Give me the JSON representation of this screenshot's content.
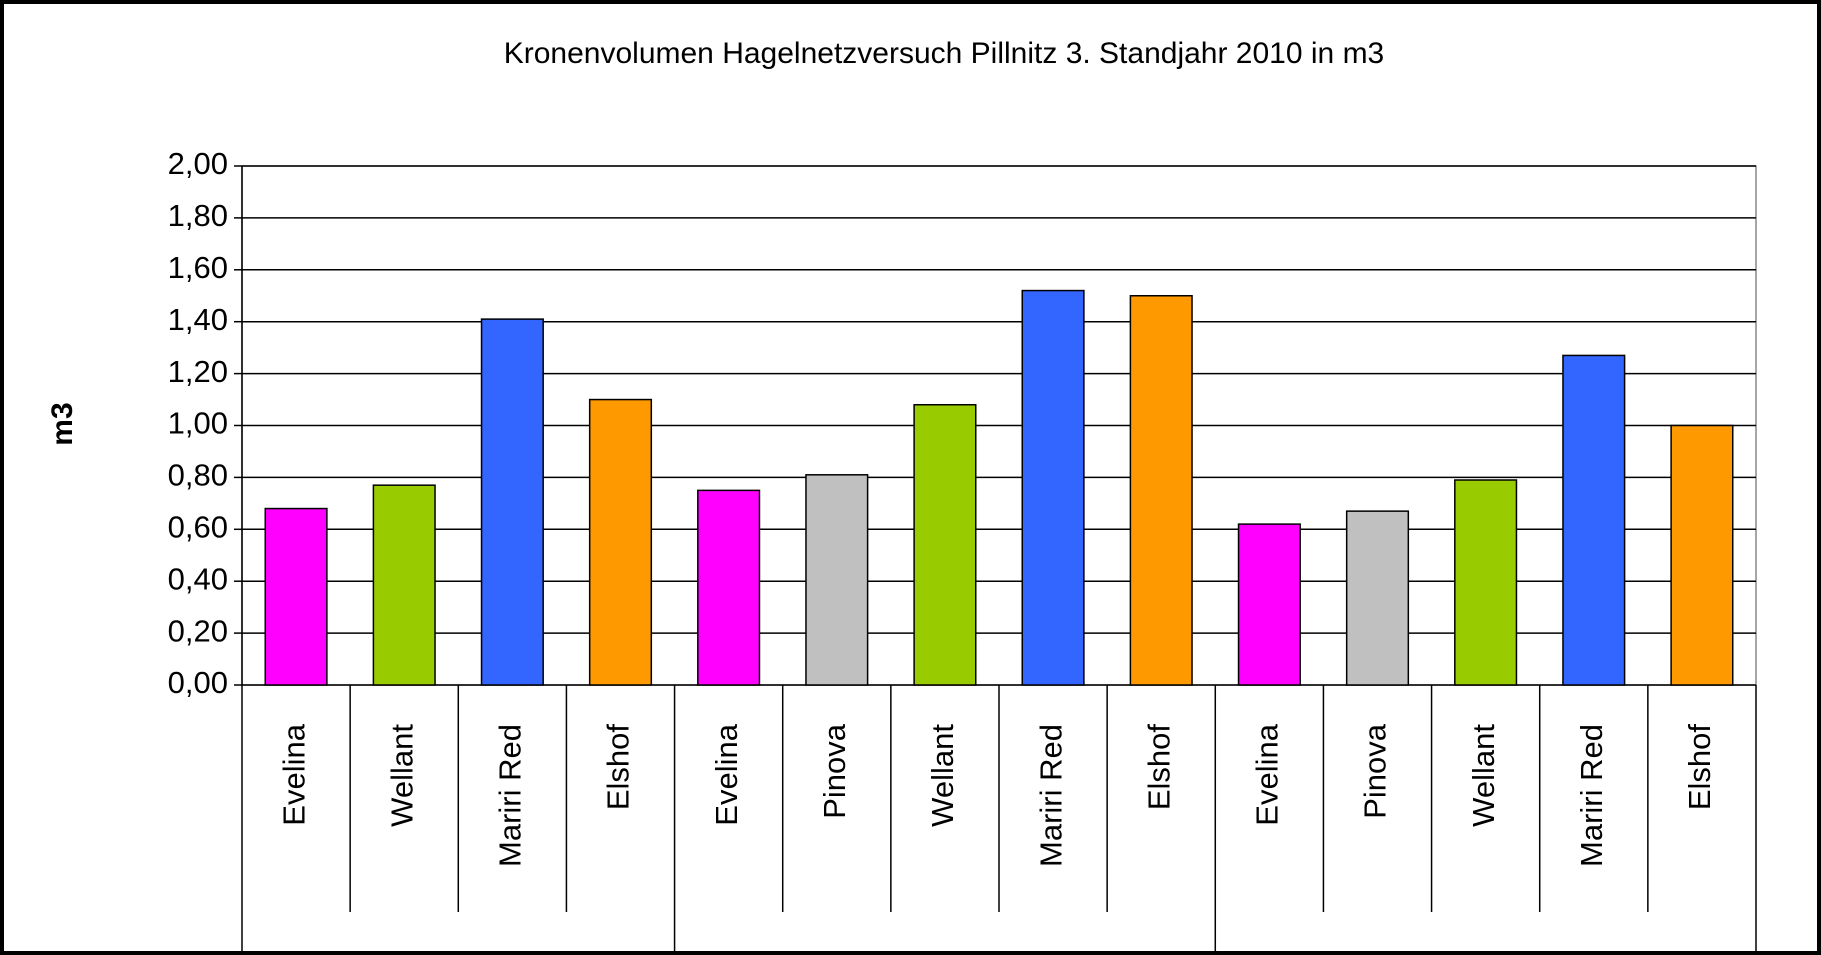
{
  "chart_data": {
    "type": "bar",
    "title": "Kronenvolumen Hagelnetzversuch Pillnitz 3. Standjahr 2010 in m3",
    "y_label": "m3",
    "categories": [
      "Evelina",
      "Wellant",
      "Mariri Red",
      "Elshof",
      "Evelina",
      "Pinova",
      "Wellant",
      "Mariri Red",
      "Elshof",
      "Evelina",
      "Pinova",
      "Wellant",
      "Mariri Red",
      "Elshof"
    ],
    "values": [
      0.68,
      0.77,
      1.41,
      1.1,
      0.75,
      0.81,
      1.08,
      1.52,
      1.5,
      0.62,
      0.67,
      0.79,
      1.27,
      1.0
    ],
    "colors": [
      "#ff00ff",
      "#99cc00",
      "#3366ff",
      "#ff9900",
      "#ff00ff",
      "#c0c0c0",
      "#99cc00",
      "#3366ff",
      "#ff9900",
      "#ff00ff",
      "#c0c0c0",
      "#99cc00",
      "#3366ff",
      "#ff9900"
    ],
    "ylim": [
      0,
      2
    ],
    "yticks": [
      {
        "value": 0,
        "label": "0,00"
      },
      {
        "value": 0.2,
        "label": "0,20"
      },
      {
        "value": 0.4,
        "label": "0,40"
      },
      {
        "value": 0.6,
        "label": "0,60"
      },
      {
        "value": 0.8,
        "label": "0,80"
      },
      {
        "value": 1,
        "label": "1,00"
      },
      {
        "value": 1.2,
        "label": "1,20"
      },
      {
        "value": 1.4,
        "label": "1,40"
      },
      {
        "value": 1.6,
        "label": "1,60"
      },
      {
        "value": 1.8,
        "label": "1,80"
      },
      {
        "value": 2,
        "label": "2,00"
      }
    ],
    "grid": true
  }
}
